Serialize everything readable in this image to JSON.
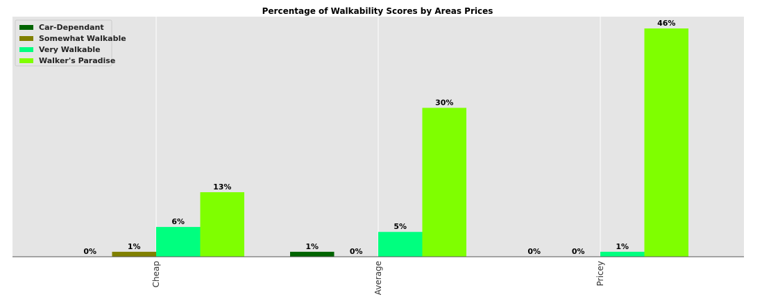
{
  "chart_data": {
    "type": "bar",
    "title": "Percentage of Walkability Scores by Areas Prices",
    "xlabel": "",
    "ylabel": "",
    "categories": [
      "Cheap",
      "Average",
      "Pricey"
    ],
    "series": [
      {
        "name": "Car-Dependant",
        "color": "#006400",
        "values": [
          0,
          1,
          0
        ],
        "labels": [
          "0%",
          "1%",
          "0%"
        ]
      },
      {
        "name": "Somewhat Walkable",
        "color": "#808000",
        "values": [
          1,
          0,
          0
        ],
        "labels": [
          "1%",
          "0%",
          "0%"
        ]
      },
      {
        "name": "Very Walkable",
        "color": "#00FF7F",
        "values": [
          6,
          5,
          1
        ],
        "labels": [
          "6%",
          "5%",
          "1%"
        ]
      },
      {
        "name": "Walker's Paradise",
        "color": "#7FFF00",
        "values": [
          13,
          30,
          46
        ],
        "labels": [
          "13%",
          "30%",
          "46%"
        ]
      }
    ],
    "ylim": [
      0,
      48
    ],
    "grid": true,
    "legend_position": "top-left",
    "tick_label_rotation": "vertical"
  }
}
